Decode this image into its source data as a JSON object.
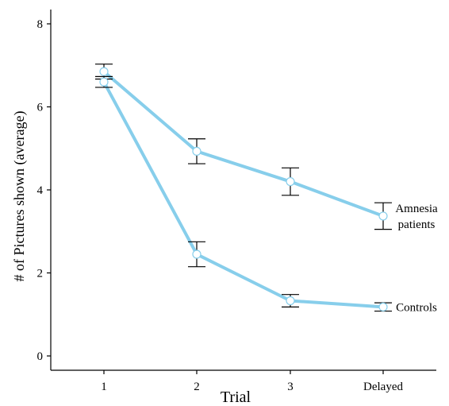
{
  "chart_data": {
    "type": "line",
    "xlabel": "Trial",
    "ylabel": "# of Pictures shown (average)",
    "categories": [
      "1",
      "2",
      "3",
      "Delayed"
    ],
    "ylim": [
      0,
      8
    ],
    "yticks": [
      0,
      2,
      4,
      6,
      8
    ],
    "grid": false,
    "legend": "none",
    "line_color": "#87CEEB",
    "marker_fill": "#ffffff",
    "series": [
      {
        "label_lines": [
          "Amnesia",
          "patients"
        ],
        "values": [
          6.85,
          4.93,
          4.2,
          3.37
        ],
        "error": [
          0.18,
          0.3,
          0.33,
          0.32
        ]
      },
      {
        "label_lines": [
          "Controls"
        ],
        "values": [
          6.6,
          2.45,
          1.33,
          1.18
        ],
        "error": [
          0.13,
          0.3,
          0.15,
          0.1
        ]
      }
    ]
  }
}
